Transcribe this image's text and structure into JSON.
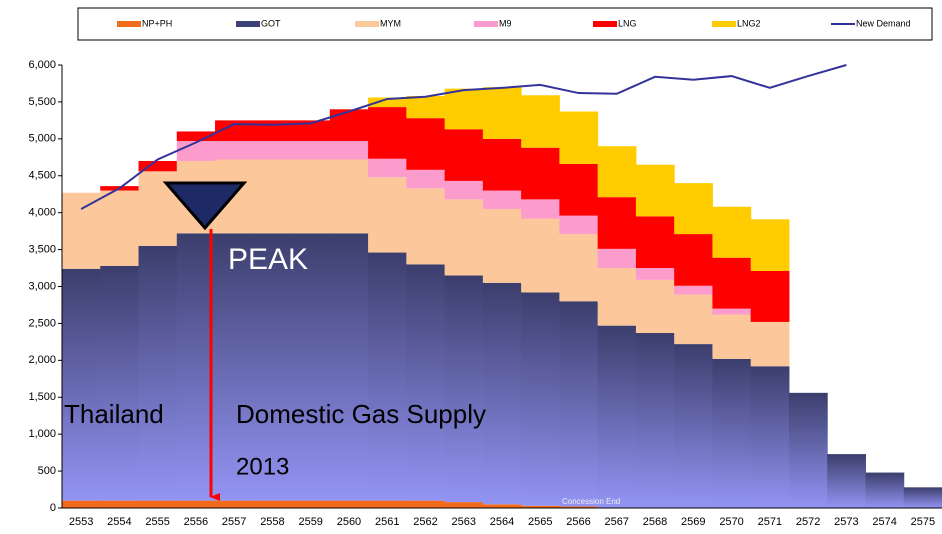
{
  "chart_data": {
    "type": "stacked_bar",
    "categories": [
      "2553",
      "2554",
      "2555",
      "2556",
      "2557",
      "2558",
      "2559",
      "2560",
      "2561",
      "2562",
      "2563",
      "2564",
      "2565",
      "2566",
      "2567",
      "2568",
      "2569",
      "2570",
      "2571",
      "2572",
      "2573",
      "2574",
      "2575"
    ],
    "series": [
      {
        "name": "NP+PH",
        "color": "#f26b1d",
        "values": [
          100,
          100,
          100,
          100,
          100,
          100,
          100,
          100,
          100,
          100,
          80,
          50,
          30,
          20,
          0,
          0,
          0,
          0,
          0,
          0,
          0,
          0,
          0
        ]
      },
      {
        "name": "GOT",
        "color": "#3d4275",
        "values": [
          3140,
          3180,
          3450,
          3620,
          3620,
          3620,
          3620,
          3620,
          3360,
          3200,
          3070,
          3000,
          2890,
          2780,
          2470,
          2370,
          2220,
          2020,
          1920,
          1560,
          730,
          480,
          280
        ]
      },
      {
        "name": "MYM",
        "color": "#fcc89b",
        "values": [
          1030,
          1020,
          1010,
          980,
          1000,
          1000,
          1000,
          1000,
          1020,
          1030,
          1030,
          1000,
          1000,
          910,
          780,
          720,
          670,
          600,
          600,
          0,
          0,
          0,
          0
        ]
      },
      {
        "name": "M9",
        "color": "#fb9ccc",
        "values": [
          0,
          0,
          0,
          270,
          250,
          250,
          250,
          250,
          250,
          250,
          250,
          250,
          260,
          250,
          260,
          160,
          120,
          80,
          0,
          0,
          0,
          0,
          0
        ]
      },
      {
        "name": "LNG",
        "color": "#ff0000",
        "values": [
          0,
          60,
          140,
          130,
          280,
          280,
          280,
          430,
          700,
          700,
          700,
          700,
          700,
          700,
          700,
          700,
          700,
          690,
          690,
          0,
          0,
          0,
          0
        ]
      },
      {
        "name": "LNG2",
        "color": "#ffcc00",
        "values": [
          0,
          0,
          0,
          0,
          0,
          0,
          0,
          0,
          130,
          300,
          550,
          700,
          710,
          710,
          690,
          700,
          690,
          690,
          700,
          0,
          0,
          0,
          0
        ]
      },
      {
        "name": "New Demand",
        "color": "#333399",
        "type": "line",
        "values": [
          4050,
          4330,
          4720,
          4950,
          5200,
          5190,
          5210,
          5370,
          5540,
          5570,
          5660,
          5690,
          5730,
          5620,
          5610,
          5840,
          5800,
          5850,
          5690,
          5850,
          6000,
          null,
          null
        ]
      }
    ],
    "ylim": [
      0,
      6000
    ],
    "yticks": [
      0,
      {
        "value": 500,
        "label": "500"
      },
      {
        "value": 1000,
        "label": "1,000"
      },
      {
        "value": 1500,
        "label": "1,500"
      },
      {
        "value": 2000,
        "label": "2,000"
      },
      {
        "value": 2500,
        "label": "2,500"
      },
      {
        "value": 3000,
        "label": "3,000"
      },
      {
        "value": 3500,
        "label": "3,500"
      },
      {
        "value": 4000,
        "label": "4,000"
      },
      {
        "value": 4500,
        "label": "4,500"
      },
      {
        "value": 5000,
        "label": "5,000"
      },
      {
        "value": 5500,
        "label": "5,500"
      },
      {
        "value": 6000,
        "label": "6,000"
      }
    ],
    "grid": false,
    "legend": "top",
    "annotations": [
      "PEAK",
      "Thailand",
      "Domestic Gas Supply",
      "2013",
      "Concession End"
    ]
  }
}
